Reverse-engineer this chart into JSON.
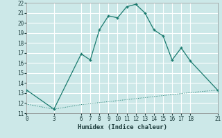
{
  "xlabel": "Humidex (Indice chaleur)",
  "bg_color": "#cce8e8",
  "grid_color": "#ffffff",
  "line_color": "#1a7a6e",
  "xlim": [
    0,
    21
  ],
  "ylim": [
    11,
    22
  ],
  "xticks": [
    0,
    3,
    6,
    7,
    8,
    9,
    10,
    11,
    12,
    13,
    14,
    15,
    16,
    17,
    18,
    21
  ],
  "yticks": [
    11,
    12,
    13,
    14,
    15,
    16,
    17,
    18,
    19,
    20,
    21,
    22
  ],
  "curve1_x": [
    0,
    3,
    6,
    7,
    8,
    9,
    10,
    11,
    12,
    13,
    14,
    15,
    16,
    17,
    18,
    21
  ],
  "curve1_y": [
    13.3,
    11.4,
    16.9,
    16.3,
    19.3,
    20.7,
    20.5,
    21.6,
    21.85,
    21.0,
    19.3,
    18.7,
    16.3,
    17.5,
    16.2,
    13.3
  ],
  "curve2_x": [
    0,
    3,
    6,
    7,
    8,
    9,
    10,
    11,
    12,
    13,
    14,
    15,
    16,
    17,
    18,
    21
  ],
  "curve2_y": [
    11.9,
    11.4,
    11.85,
    11.95,
    12.05,
    12.15,
    12.25,
    12.35,
    12.45,
    12.55,
    12.65,
    12.75,
    12.85,
    12.95,
    13.05,
    13.3
  ]
}
